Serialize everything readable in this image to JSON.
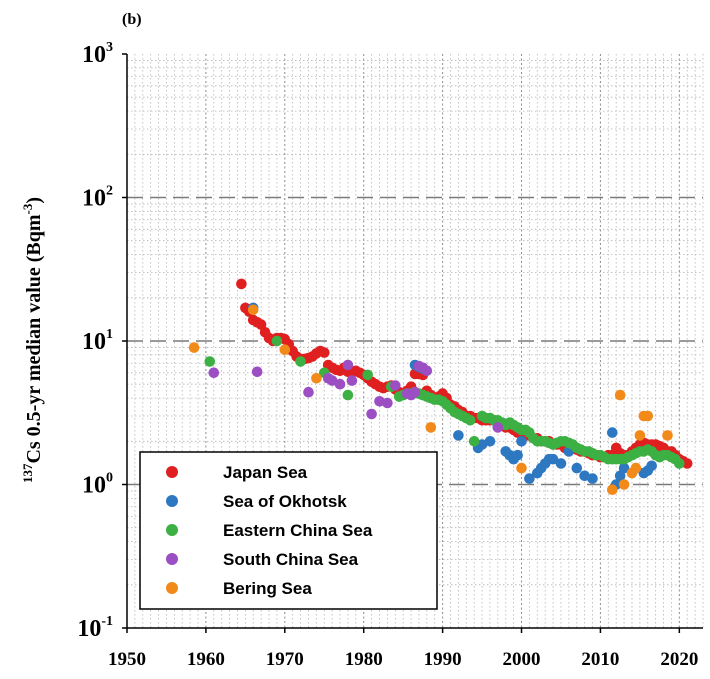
{
  "chart_data": {
    "type": "scatter",
    "panel_label": "(b)",
    "ylabel": {
      "superscript": "137",
      "text": "Cs 0.5-yr median value (Bqm",
      "unit_superscript": "-3",
      "closing": ")"
    },
    "y_scale": "log",
    "ylim": [
      0.1,
      1000
    ],
    "yticks": [
      {
        "value": 0.1,
        "base": "10",
        "exp": "-1"
      },
      {
        "value": 1,
        "base": "10",
        "exp": "0"
      },
      {
        "value": 10,
        "base": "10",
        "exp": "1"
      },
      {
        "value": 100,
        "base": "10",
        "exp": "2"
      },
      {
        "value": 1000,
        "base": "10",
        "exp": "3"
      }
    ],
    "xlim": [
      1950,
      2023
    ],
    "xticks": [
      "1950",
      "1960",
      "1970",
      "1980",
      "1990",
      "2000",
      "2010",
      "2020"
    ],
    "grid": true,
    "legend_position": "bottom-left",
    "series": [
      {
        "name": "Japan Sea",
        "color": "#e02020",
        "points": [
          [
            1964.5,
            25
          ],
          [
            1965,
            17
          ],
          [
            1965.5,
            16
          ],
          [
            1966,
            14
          ],
          [
            1966.5,
            13.5
          ],
          [
            1967,
            13
          ],
          [
            1967.5,
            11.5
          ],
          [
            1968,
            10.5
          ],
          [
            1968.5,
            10
          ],
          [
            1969,
            10.5
          ],
          [
            1969.5,
            10.5
          ],
          [
            1970,
            10.3
          ],
          [
            1970.5,
            9.5
          ],
          [
            1971,
            8.5
          ],
          [
            1971.5,
            7.8
          ],
          [
            1972,
            7.5
          ],
          [
            1972.5,
            7.5
          ],
          [
            1973,
            7.6
          ],
          [
            1973.5,
            7.8
          ],
          [
            1974,
            8.2
          ],
          [
            1974.5,
            8.5
          ],
          [
            1975,
            8.3
          ],
          [
            1975.5,
            6.8
          ],
          [
            1976,
            6.5
          ],
          [
            1976.5,
            6.3
          ],
          [
            1977,
            6.2
          ],
          [
            1977.5,
            6.5
          ],
          [
            1978,
            6.1
          ],
          [
            1978.5,
            6.0
          ],
          [
            1979,
            6.2
          ],
          [
            1979.5,
            6.0
          ],
          [
            1980,
            5.8
          ],
          [
            1980.5,
            5.5
          ],
          [
            1981,
            5.2
          ],
          [
            1981.5,
            5.0
          ],
          [
            1982,
            4.8
          ],
          [
            1982.5,
            4.7
          ],
          [
            1983,
            4.8
          ],
          [
            1983.5,
            4.9
          ],
          [
            1984,
            4.6
          ],
          [
            1984.5,
            4.4
          ],
          [
            1985,
            4.3
          ],
          [
            1985.5,
            4.5
          ],
          [
            1986,
            4.8
          ],
          [
            1986.5,
            5.9
          ],
          [
            1987,
            5.9
          ],
          [
            1987.5,
            5.8
          ],
          [
            1988,
            4.5
          ],
          [
            1988.5,
            4.2
          ],
          [
            1989,
            4.0
          ],
          [
            1989.5,
            4.1
          ],
          [
            1990,
            4.3
          ],
          [
            1990.5,
            4.0
          ],
          [
            1991,
            3.6
          ],
          [
            1991.5,
            3.5
          ],
          [
            1992,
            3.3
          ],
          [
            1992.5,
            3.2
          ],
          [
            1993,
            3.0
          ],
          [
            1993.5,
            3.0
          ],
          [
            1994,
            2.9
          ],
          [
            1994.5,
            2.9
          ],
          [
            1995,
            2.8
          ],
          [
            1995.5,
            2.8
          ],
          [
            1996,
            2.8
          ],
          [
            1996.5,
            2.8
          ],
          [
            1997,
            2.7
          ],
          [
            1997.5,
            2.6
          ],
          [
            1998,
            2.5
          ],
          [
            1998.5,
            2.5
          ],
          [
            1999,
            2.4
          ],
          [
            1999.5,
            2.3
          ],
          [
            2000,
            2.3
          ],
          [
            2000.5,
            2.2
          ],
          [
            2001,
            2.2
          ],
          [
            2001.5,
            2.1
          ],
          [
            2002,
            2.1
          ],
          [
            2002.5,
            2.0
          ],
          [
            2003,
            2.0
          ],
          [
            2003.5,
            2.0
          ],
          [
            2004,
            1.9
          ],
          [
            2004.5,
            1.9
          ],
          [
            2005,
            1.9
          ],
          [
            2005.5,
            1.8
          ],
          [
            2006,
            1.8
          ],
          [
            2006.5,
            1.8
          ],
          [
            2007,
            1.75
          ],
          [
            2007.5,
            1.7
          ],
          [
            2008,
            1.7
          ],
          [
            2008.5,
            1.65
          ],
          [
            2009,
            1.6
          ],
          [
            2009.5,
            1.6
          ],
          [
            2010,
            1.55
          ],
          [
            2010.5,
            1.55
          ],
          [
            2011,
            1.6
          ],
          [
            2011.5,
            1.6
          ],
          [
            2012,
            1.8
          ],
          [
            2012.5,
            1.65
          ],
          [
            2013,
            1.6
          ],
          [
            2013.5,
            1.6
          ],
          [
            2014,
            1.7
          ],
          [
            2014.5,
            1.8
          ],
          [
            2015,
            1.9
          ],
          [
            2015.5,
            1.95
          ],
          [
            2016,
            1.9
          ],
          [
            2016.5,
            1.9
          ],
          [
            2017,
            1.9
          ],
          [
            2017.5,
            1.85
          ],
          [
            2018,
            1.8
          ],
          [
            2018.5,
            1.7
          ],
          [
            2019,
            1.7
          ],
          [
            2019.5,
            1.6
          ],
          [
            2020,
            1.5
          ],
          [
            2020.5,
            1.45
          ],
          [
            2021,
            1.4
          ]
        ]
      },
      {
        "name": "Sea of Okhotsk",
        "color": "#2e78c2",
        "points": [
          [
            1966,
            17
          ],
          [
            1986.5,
            6.8
          ],
          [
            1987,
            6.6
          ],
          [
            1987.5,
            6.4
          ],
          [
            1992,
            2.2
          ],
          [
            1994.5,
            1.8
          ],
          [
            1995,
            1.9
          ],
          [
            1996,
            2.0
          ],
          [
            1997,
            2.6
          ],
          [
            1998,
            1.7
          ],
          [
            1998.5,
            1.6
          ],
          [
            1999,
            1.5
          ],
          [
            1999.5,
            1.6
          ],
          [
            2000,
            2.0
          ],
          [
            2001,
            1.1
          ],
          [
            2002,
            1.2
          ],
          [
            2002.5,
            1.3
          ],
          [
            2003,
            1.4
          ],
          [
            2003.5,
            1.5
          ],
          [
            2004,
            1.5
          ],
          [
            2005,
            1.4
          ],
          [
            2006,
            1.7
          ],
          [
            2007,
            1.3
          ],
          [
            2008,
            1.15
          ],
          [
            2009,
            1.1
          ],
          [
            2011.5,
            2.3
          ],
          [
            2012,
            1.0
          ],
          [
            2012.5,
            1.15
          ],
          [
            2013,
            1.3
          ],
          [
            2015.5,
            1.2
          ],
          [
            2016,
            1.25
          ],
          [
            2016.5,
            1.35
          ]
        ]
      },
      {
        "name": "Eastern China Sea",
        "color": "#3cb043",
        "points": [
          [
            1960.5,
            7.2
          ],
          [
            1969,
            10.0
          ],
          [
            1972,
            7.2
          ],
          [
            1975,
            6.0
          ],
          [
            1978,
            4.2
          ],
          [
            1980.5,
            5.8
          ],
          [
            1983.5,
            4.8
          ],
          [
            1984.5,
            4.1
          ],
          [
            1985,
            4.2
          ],
          [
            1985.5,
            4.3
          ],
          [
            1986,
            4.3
          ],
          [
            1986.5,
            4.4
          ],
          [
            1987,
            4.3
          ],
          [
            1987.5,
            4.2
          ],
          [
            1988,
            4.1
          ],
          [
            1988.5,
            4.0
          ],
          [
            1989,
            3.9
          ],
          [
            1989.5,
            3.9
          ],
          [
            1990,
            3.8
          ],
          [
            1990.5,
            3.6
          ],
          [
            1991,
            3.4
          ],
          [
            1991.5,
            3.2
          ],
          [
            1992,
            3.1
          ],
          [
            1992.5,
            3.0
          ],
          [
            1993,
            2.9
          ],
          [
            1993.5,
            2.8
          ],
          [
            1994,
            2.0
          ],
          [
            1995,
            3.0
          ],
          [
            1995.5,
            2.9
          ],
          [
            1996,
            2.9
          ],
          [
            1996.5,
            2.8
          ],
          [
            1997,
            2.8
          ],
          [
            1997.5,
            2.7
          ],
          [
            1998,
            2.6
          ],
          [
            1998.5,
            2.7
          ],
          [
            1999,
            2.6
          ],
          [
            1999.5,
            2.5
          ],
          [
            2000,
            2.4
          ],
          [
            2000.5,
            2.4
          ],
          [
            2001,
            2.3
          ],
          [
            2001.5,
            2.1
          ],
          [
            2002,
            2.0
          ],
          [
            2002.5,
            2.0
          ],
          [
            2003,
            2.0
          ],
          [
            2003.5,
            1.95
          ],
          [
            2004,
            1.9
          ],
          [
            2004.5,
            1.95
          ],
          [
            2005,
            2.0
          ],
          [
            2005.5,
            2.0
          ],
          [
            2006,
            1.95
          ],
          [
            2006.5,
            1.9
          ],
          [
            2007,
            1.8
          ],
          [
            2007.5,
            1.75
          ],
          [
            2008,
            1.7
          ],
          [
            2008.5,
            1.7
          ],
          [
            2009,
            1.65
          ],
          [
            2009.5,
            1.6
          ],
          [
            2010,
            1.6
          ],
          [
            2010.5,
            1.55
          ],
          [
            2011,
            1.5
          ],
          [
            2011.5,
            1.5
          ],
          [
            2012,
            1.5
          ],
          [
            2012.5,
            1.5
          ],
          [
            2013,
            1.5
          ],
          [
            2013.5,
            1.55
          ],
          [
            2014,
            1.6
          ],
          [
            2014.5,
            1.65
          ],
          [
            2015,
            1.7
          ],
          [
            2015.5,
            1.7
          ],
          [
            2016,
            1.75
          ],
          [
            2016.5,
            1.7
          ],
          [
            2017,
            1.6
          ],
          [
            2017.5,
            1.55
          ],
          [
            2018,
            1.6
          ],
          [
            2018.5,
            1.6
          ],
          [
            2019,
            1.55
          ],
          [
            2019.5,
            1.5
          ],
          [
            2020,
            1.4
          ]
        ]
      },
      {
        "name": "South China Sea",
        "color": "#9b4fc2",
        "points": [
          [
            1961,
            6.0
          ],
          [
            1966.5,
            6.1
          ],
          [
            1973,
            4.4
          ],
          [
            1975.5,
            5.5
          ],
          [
            1976,
            5.3
          ],
          [
            1977,
            5.0
          ],
          [
            1978,
            6.8
          ],
          [
            1978.5,
            5.3
          ],
          [
            1981,
            3.1
          ],
          [
            1982,
            3.8
          ],
          [
            1983,
            3.7
          ],
          [
            1984,
            4.9
          ],
          [
            1985.5,
            4.3
          ],
          [
            1986,
            4.2
          ],
          [
            1986.5,
            4.4
          ],
          [
            1987,
            6.7
          ],
          [
            1987.5,
            6.5
          ],
          [
            1988,
            6.2
          ],
          [
            1997,
            2.5
          ]
        ]
      },
      {
        "name": "Bering Sea",
        "color": "#f28a1a",
        "points": [
          [
            1958.5,
            9.0
          ],
          [
            1966,
            16.5
          ],
          [
            1970,
            8.7
          ],
          [
            1974,
            5.5
          ],
          [
            1988.5,
            2.5
          ],
          [
            2000,
            1.3
          ],
          [
            2011.5,
            0.92
          ],
          [
            2012.5,
            4.2
          ],
          [
            2013,
            1.0
          ],
          [
            2014,
            1.2
          ],
          [
            2014.5,
            1.3
          ],
          [
            2015,
            2.2
          ],
          [
            2015.5,
            3.0
          ],
          [
            2016,
            3.0
          ],
          [
            2018.5,
            2.2
          ]
        ]
      }
    ]
  }
}
